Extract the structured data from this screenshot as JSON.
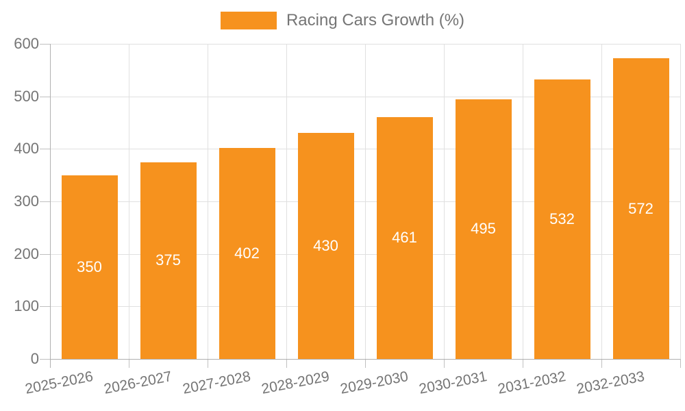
{
  "chart_data": {
    "type": "bar",
    "title": "Racing Cars Growth (%)",
    "categories": [
      "2025-2026",
      "2026-2027",
      "2027-2028",
      "2028-2029",
      "2029-2030",
      "2030-2031",
      "2031-2032",
      "2032-2033"
    ],
    "values": [
      350,
      375,
      402,
      430,
      461,
      495,
      532,
      572
    ],
    "xlabel": "",
    "ylabel": "",
    "ylim": [
      0,
      600
    ],
    "yticks": [
      0,
      100,
      200,
      300,
      400,
      500,
      600
    ],
    "grid": true,
    "legend_position": "top-center",
    "value_labels": "inside-center",
    "colors": {
      "bar": "#f6921e",
      "value_label": "#ffffff",
      "axis_text": "#757575",
      "gridline": "#e0e0e0",
      "axis_line": "#b0b0b0",
      "background": "#ffffff"
    }
  }
}
